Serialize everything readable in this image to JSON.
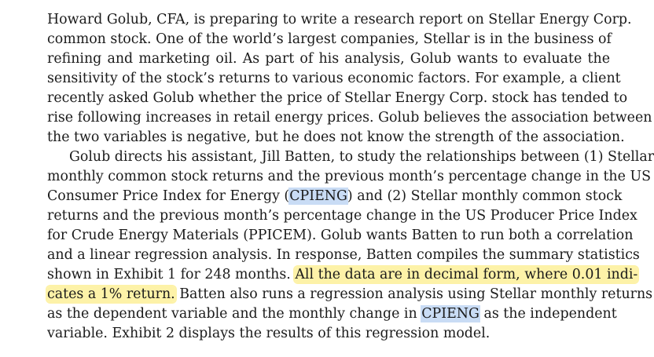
{
  "paragraph1": {
    "lines": [
      "Howard Golub, CFA, is preparing to write a research report on Stellar Energy Corp.",
      "common stock. One of the world’s largest companies, Stellar is in the business of",
      "refining and marketing oil. As part of his analysis, Golub wants to evaluate the",
      "sensitivity of the stock’s returns to various economic factors. For example, a client",
      "recently asked Golub whether the price of Stellar Energy Corp. stock has tended to",
      "rise following increases in retail energy prices. Golub believes the association between",
      "the two variables is negative, but he does not know the strength of the association."
    ]
  },
  "paragraph2": {
    "l1": "Golub directs his assistant, Jill Batten, to study the relationships between (1) Stellar",
    "l2": "monthly common stock returns and the previous month’s percentage change in the US",
    "l3_before": "Consumer Price Index for Energy (",
    "l3_term": "CPIENG",
    "l3_after": ") and (2) Stellar monthly common stock",
    "l4": "returns and the previous month’s percentage change in the US Producer Price Index",
    "l5": "for Crude Energy Materials (PPICEM). Golub wants Batten to run both a correlation",
    "l6": "and a linear regression analysis. In response, Batten compiles the summary statistics",
    "l7_before": "shown in Exhibit 1 for 248 months. ",
    "l7_highlight": "All the data are in decimal form, where 0.01 indi-",
    "l8_highlight": "cates a 1% return.",
    "l8_after": " Batten also runs a regression analysis using Stellar monthly returns",
    "l9_before": "as the dependent variable and the monthly change in ",
    "l9_term": "CPIENG",
    "l9_after": " as the independent",
    "l10": "variable. Exhibit 2 displays the results of this regression model."
  },
  "colors": {
    "yellow_highlight": "#fdf2a8",
    "blue_highlight": "#c9dcf5",
    "text": "#1a1a1a"
  }
}
